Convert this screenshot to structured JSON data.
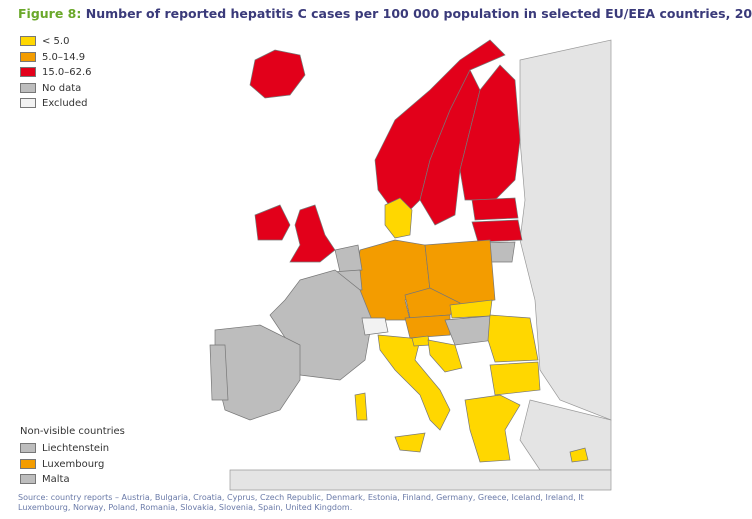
{
  "header": {
    "figure_label": "Figure 8:",
    "title": "Number of reported hepatitis C cases per 100 000 population in selected EU/EEA countries, 20"
  },
  "legend": [
    {
      "label": "< 5.0",
      "color": "#ffd700"
    },
    {
      "label": "5.0–14.9",
      "color": "#f39c00"
    },
    {
      "label": "15.0–62.6",
      "color": "#e2001a"
    },
    {
      "label": "No data",
      "color": "#bdbdbd"
    },
    {
      "label": "Excluded",
      "color": "#f2f2f2"
    }
  ],
  "non_visible": {
    "title": "Non-visible countries",
    "items": [
      {
        "label": "Liechtenstein",
        "color": "#bdbdbd"
      },
      {
        "label": "Luxembourg",
        "color": "#f39c00"
      },
      {
        "label": "Malta",
        "color": "#bdbdbd"
      }
    ]
  },
  "source": [
    "Source: country reports – Austria, Bulgaria, Croatia, Cyprus, Czech Republic, Denmark, Estonia, Finland, Germany, Greece, Iceland, Ireland, It",
    "Luxembourg, Norway, Poland, Romania, Slovakia, Slovenia, Spain, United Kingdom."
  ]
}
